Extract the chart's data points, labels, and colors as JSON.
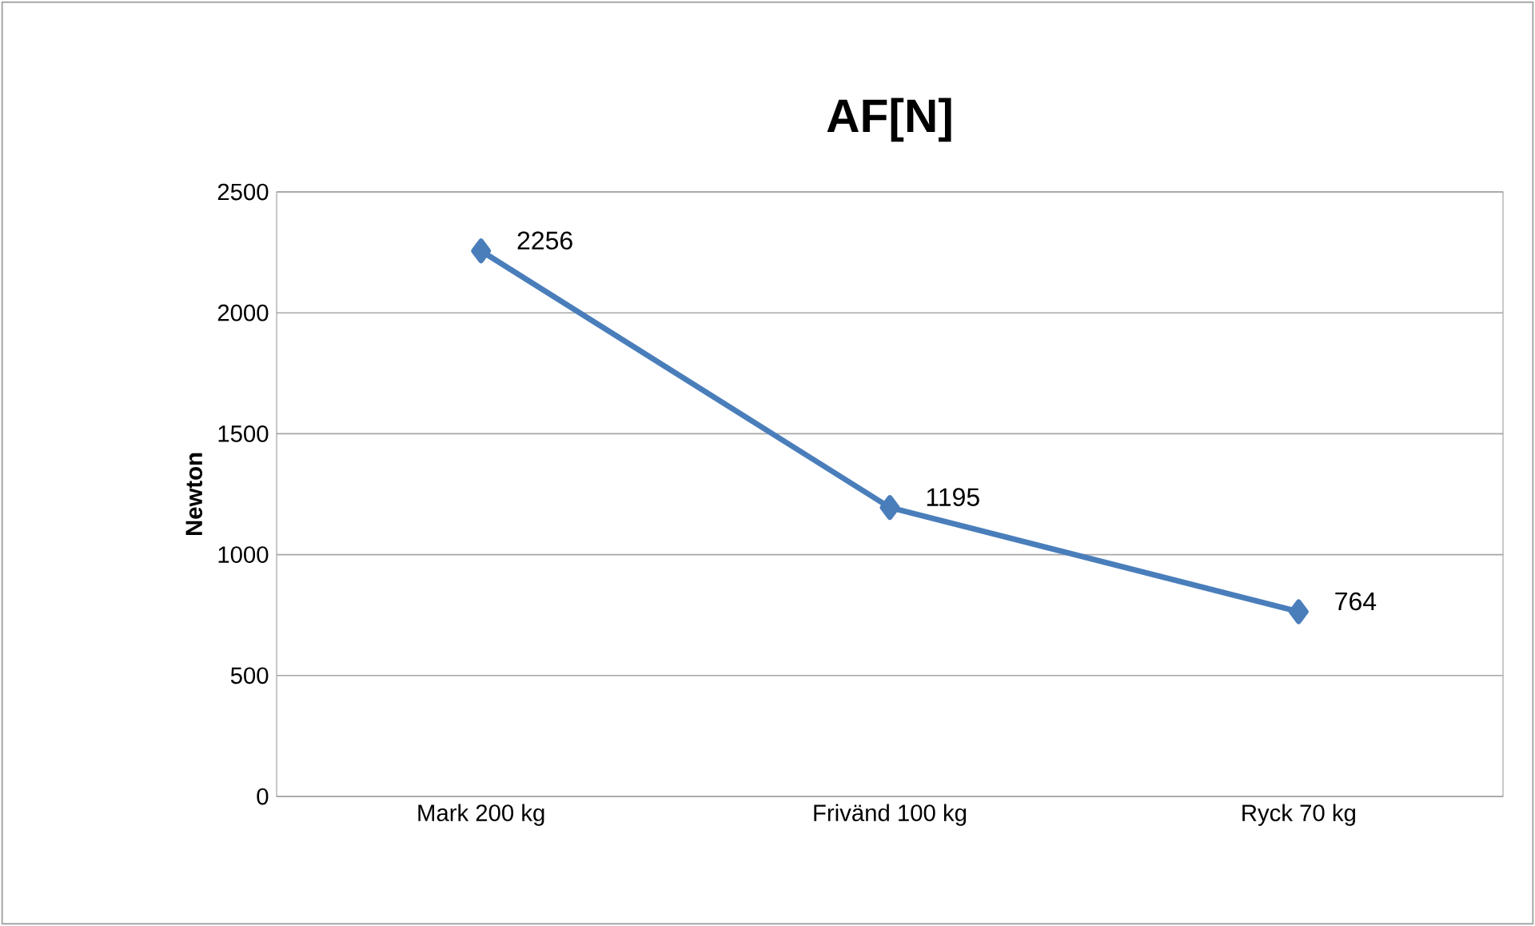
{
  "chart_data": {
    "type": "line",
    "title": "AF[N]",
    "ylabel": "Newton",
    "categories": [
      "Mark 200 kg",
      "Frivänd 100 kg",
      "Ryck 70 kg"
    ],
    "series": [
      {
        "color": "#4a7ebb",
        "values": [
          2256,
          1195,
          764
        ]
      }
    ],
    "ylim": [
      0,
      2500
    ],
    "yticks": [
      0,
      500,
      1000,
      1500,
      2000,
      2500
    ],
    "grid": "y",
    "marker": "diamond",
    "line_style": "solid",
    "data_labels": true
  }
}
